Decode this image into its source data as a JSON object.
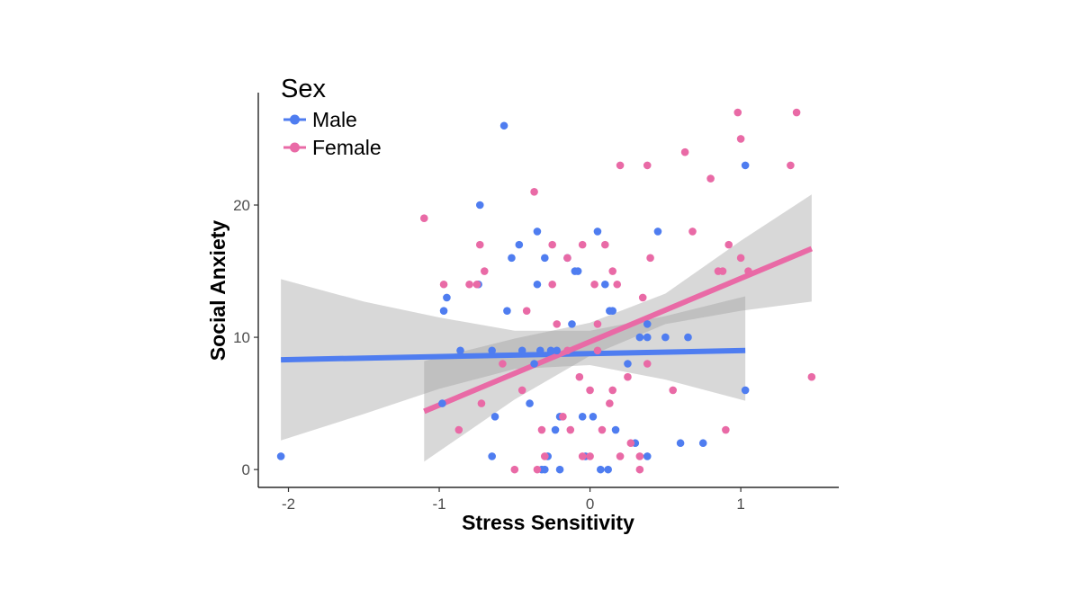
{
  "chart_data": {
    "type": "scatter",
    "xlabel": "Stress Sensitivity",
    "ylabel": "Social Anxiety",
    "xlim": [
      -2.2,
      1.65
    ],
    "ylim": [
      -1.35,
      28.5
    ],
    "xticks": [
      -2,
      -1,
      0,
      1
    ],
    "xtick_labels": [
      "-2",
      "-1",
      "0",
      "1"
    ],
    "yticks": [
      0,
      10,
      20
    ],
    "ytick_labels": [
      "0",
      "10",
      "20"
    ],
    "grid": false,
    "legend": {
      "title": "Sex",
      "placement": "top-left",
      "entries": [
        {
          "label": "Male",
          "color": "#4f7df0"
        },
        {
          "label": "Female",
          "color": "#e96aa6"
        }
      ]
    },
    "series": [
      {
        "name": "Male",
        "color": "#4f7df0",
        "points": [
          [
            -2.05,
            1
          ],
          [
            -0.57,
            26
          ],
          [
            -0.73,
            20
          ],
          [
            -0.98,
            5
          ],
          [
            -0.97,
            12
          ],
          [
            -0.95,
            13
          ],
          [
            -0.86,
            9
          ],
          [
            -0.74,
            14
          ],
          [
            -0.65,
            9
          ],
          [
            -0.63,
            4
          ],
          [
            -0.65,
            1
          ],
          [
            -0.55,
            12
          ],
          [
            -0.52,
            16
          ],
          [
            -0.47,
            17
          ],
          [
            -0.45,
            9
          ],
          [
            -0.4,
            5
          ],
          [
            -0.37,
            8
          ],
          [
            -0.35,
            18
          ],
          [
            -0.35,
            14
          ],
          [
            -0.33,
            9
          ],
          [
            -0.32,
            0
          ],
          [
            -0.3,
            16
          ],
          [
            -0.3,
            0
          ],
          [
            -0.28,
            1
          ],
          [
            -0.26,
            9
          ],
          [
            -0.23,
            3
          ],
          [
            -0.22,
            9
          ],
          [
            -0.2,
            4
          ],
          [
            -0.2,
            0
          ],
          [
            -0.15,
            16
          ],
          [
            -0.12,
            11
          ],
          [
            -0.1,
            15
          ],
          [
            -0.08,
            15
          ],
          [
            -0.05,
            4
          ],
          [
            -0.03,
            1
          ],
          [
            0.02,
            4
          ],
          [
            0.05,
            18
          ],
          [
            0.1,
            14
          ],
          [
            0.12,
            0
          ],
          [
            0.13,
            12
          ],
          [
            0.15,
            12
          ],
          [
            0.17,
            3
          ],
          [
            0.25,
            8
          ],
          [
            0.3,
            2
          ],
          [
            0.33,
            10
          ],
          [
            0.38,
            10
          ],
          [
            0.38,
            11
          ],
          [
            0.45,
            18
          ],
          [
            0.5,
            10
          ],
          [
            0.6,
            2
          ],
          [
            0.65,
            10
          ],
          [
            0.75,
            2
          ],
          [
            1.03,
            23
          ],
          [
            1.03,
            6
          ],
          [
            0.38,
            1
          ],
          [
            0.07,
            0
          ]
        ]
      },
      {
        "name": "Female",
        "color": "#e96aa6",
        "points": [
          [
            -1.1,
            19
          ],
          [
            -0.97,
            14
          ],
          [
            -0.87,
            3
          ],
          [
            -0.8,
            14
          ],
          [
            -0.75,
            14
          ],
          [
            -0.73,
            17
          ],
          [
            -0.7,
            15
          ],
          [
            -0.72,
            5
          ],
          [
            -0.58,
            8
          ],
          [
            -0.5,
            0
          ],
          [
            -0.45,
            6
          ],
          [
            -0.42,
            12
          ],
          [
            -0.37,
            21
          ],
          [
            -0.35,
            0
          ],
          [
            -0.32,
            3
          ],
          [
            -0.3,
            1
          ],
          [
            -0.25,
            17
          ],
          [
            -0.25,
            14
          ],
          [
            -0.22,
            11
          ],
          [
            -0.18,
            4
          ],
          [
            -0.15,
            16
          ],
          [
            -0.13,
            3
          ],
          [
            -0.07,
            7
          ],
          [
            -0.05,
            17
          ],
          [
            -0.05,
            1
          ],
          [
            0.0,
            6
          ],
          [
            0.0,
            1
          ],
          [
            0.03,
            14
          ],
          [
            0.05,
            11
          ],
          [
            0.05,
            9
          ],
          [
            0.08,
            3
          ],
          [
            0.1,
            17
          ],
          [
            0.13,
            5
          ],
          [
            0.15,
            6
          ],
          [
            0.15,
            15
          ],
          [
            0.18,
            14
          ],
          [
            0.2,
            23
          ],
          [
            0.2,
            1
          ],
          [
            0.25,
            7
          ],
          [
            0.27,
            2
          ],
          [
            0.33,
            0
          ],
          [
            0.35,
            13
          ],
          [
            0.38,
            23
          ],
          [
            0.38,
            8
          ],
          [
            0.4,
            16
          ],
          [
            0.55,
            6
          ],
          [
            0.63,
            24
          ],
          [
            0.68,
            18
          ],
          [
            0.8,
            22
          ],
          [
            0.85,
            15
          ],
          [
            0.88,
            15
          ],
          [
            0.9,
            3
          ],
          [
            0.92,
            17
          ],
          [
            0.98,
            27
          ],
          [
            1.0,
            25
          ],
          [
            1.0,
            16
          ],
          [
            1.05,
            15
          ],
          [
            1.33,
            23
          ],
          [
            1.37,
            27
          ],
          [
            1.47,
            7
          ],
          [
            -0.15,
            9
          ],
          [
            0.33,
            1
          ]
        ]
      }
    ],
    "trend_lines": [
      {
        "name": "Male",
        "color": "#4f7df0",
        "x": [
          -2.05,
          1.03
        ],
        "y": [
          8.3,
          9.0
        ]
      },
      {
        "name": "Female",
        "color": "#e96aa6",
        "x": [
          -1.1,
          1.47
        ],
        "y": [
          4.4,
          16.7
        ]
      }
    ],
    "confidence_bands": [
      {
        "name": "Male",
        "x": [
          -2.05,
          -1.5,
          -1.0,
          -0.5,
          0.0,
          0.5,
          1.03
        ],
        "upper": [
          14.4,
          12.7,
          11.5,
          10.5,
          10.5,
          11.6,
          13.1
        ],
        "lower": [
          2.2,
          4.2,
          6.1,
          7.6,
          7.9,
          6.8,
          5.2
        ]
      },
      {
        "name": "Female",
        "x": [
          -1.1,
          -0.5,
          0.0,
          0.5,
          1.0,
          1.47
        ],
        "upper": [
          8.2,
          9.9,
          11.1,
          13.3,
          17.3,
          20.8
        ],
        "lower": [
          0.6,
          5.3,
          8.6,
          11.0,
          12.0,
          12.7
        ]
      }
    ]
  }
}
